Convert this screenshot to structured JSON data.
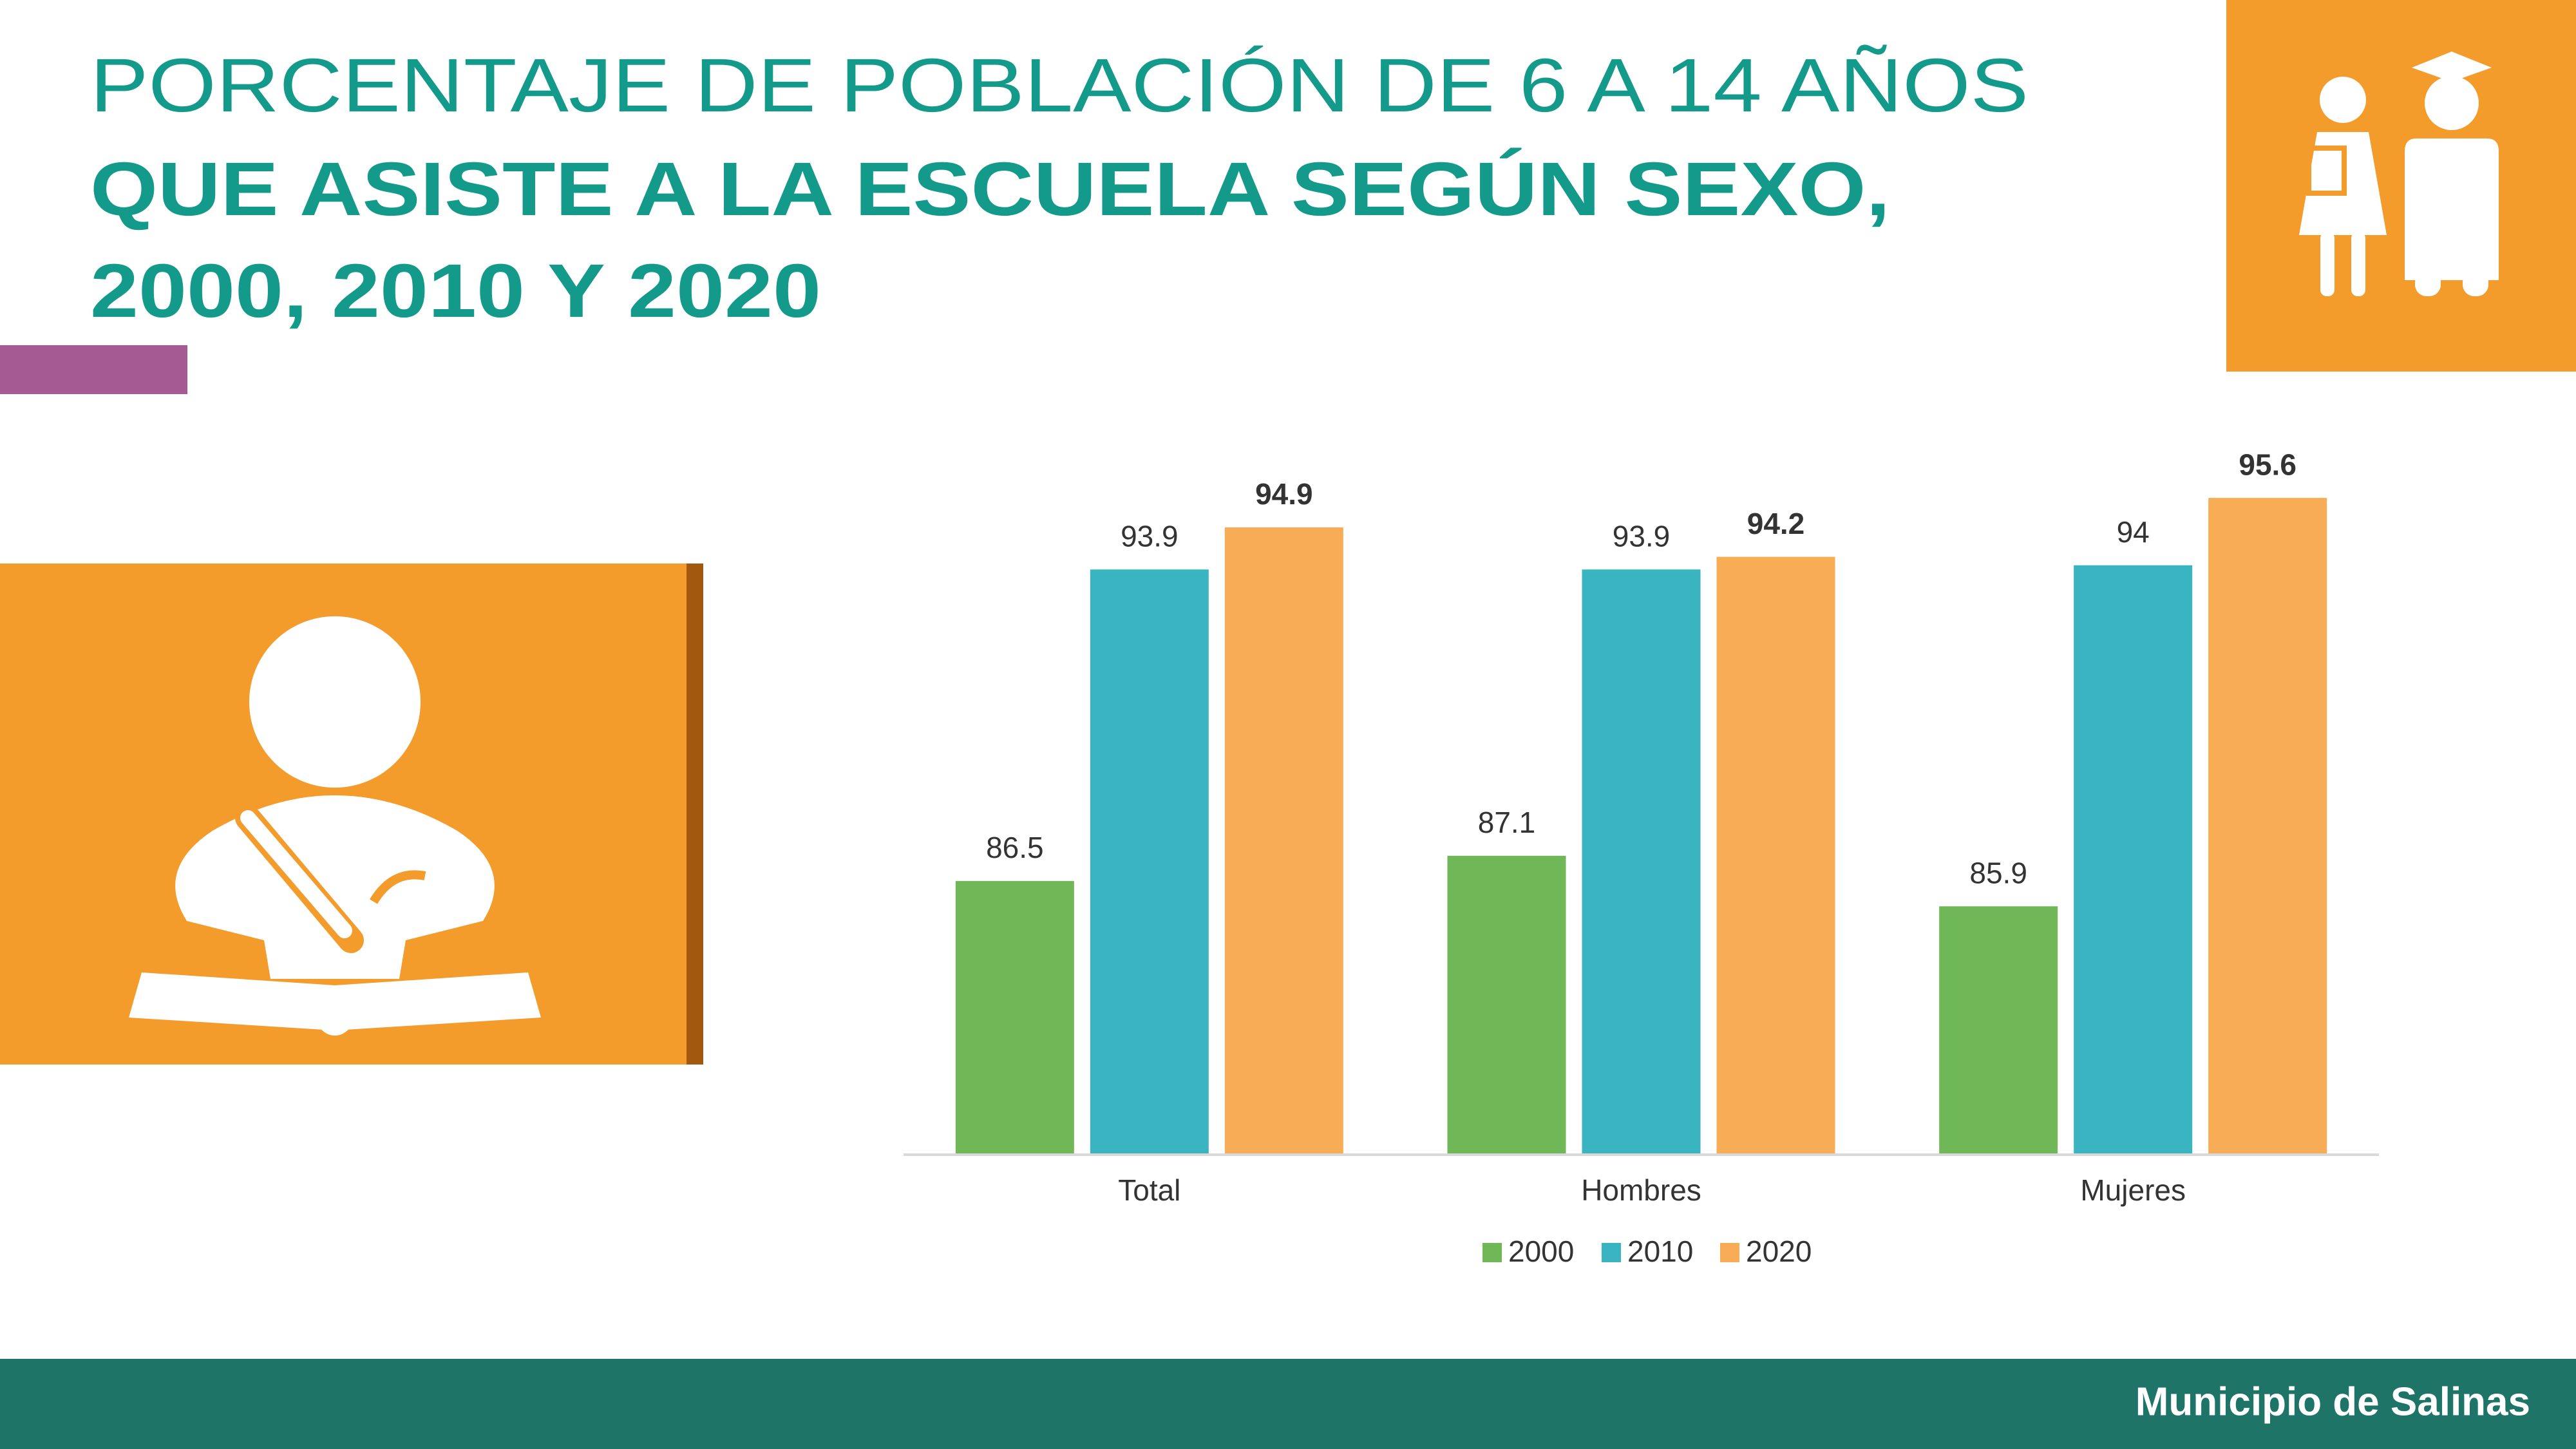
{
  "title_lines": [
    "PORCENTAJE DE POBLACIÓN DE 6 A 14 AÑOS",
    "QUE ASISTE A LA ESCUELA SEGÚN SEXO,",
    "2000, 2010 Y 2020"
  ],
  "footer": "Municipio de Salinas",
  "chart_data": {
    "type": "bar",
    "categories": [
      "Total",
      "Hombres",
      "Mujeres"
    ],
    "series": [
      {
        "name": "2000",
        "color": "#70b857",
        "values": [
          86.5,
          87.1,
          85.9
        ]
      },
      {
        "name": "2010",
        "color": "#3bb4c1",
        "values": [
          93.9,
          93.9,
          94
        ]
      },
      {
        "name": "2020",
        "color": "#f7ac55",
        "values": [
          94.9,
          94.2,
          95.6
        ]
      }
    ],
    "ylim": [
      80,
      96
    ],
    "legend": "bottom"
  }
}
